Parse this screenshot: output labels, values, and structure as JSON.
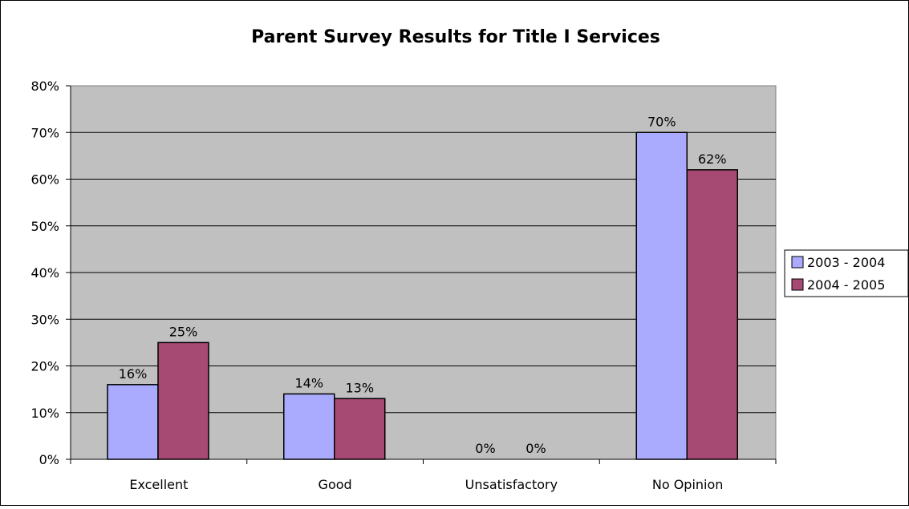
{
  "chart_data": {
    "type": "bar",
    "title": "Parent Survey Results for Title I Services",
    "xlabel": "",
    "ylabel": "",
    "categories": [
      "Excellent",
      "Good",
      "Unsatisfactory",
      "No Opinion"
    ],
    "series": [
      {
        "name": "2003 - 2004",
        "values": [
          16,
          14,
          0,
          70
        ],
        "labels": [
          "16%",
          "14%",
          "0%",
          "70%"
        ],
        "color": "#aaaaff"
      },
      {
        "name": "2004 - 2005",
        "values": [
          25,
          13,
          0,
          62
        ],
        "labels": [
          "25%",
          "13%",
          "0%",
          "62%"
        ],
        "color": "#a64a73"
      }
    ],
    "ylim": [
      0,
      80
    ],
    "yticks": [
      0,
      10,
      20,
      30,
      40,
      50,
      60,
      70,
      80
    ],
    "ytick_labels": [
      "0%",
      "10%",
      "20%",
      "30%",
      "40%",
      "50%",
      "60%",
      "70%",
      "80%"
    ],
    "grid": true,
    "plot_background": "#c0c0c0",
    "legend_position": "right"
  }
}
